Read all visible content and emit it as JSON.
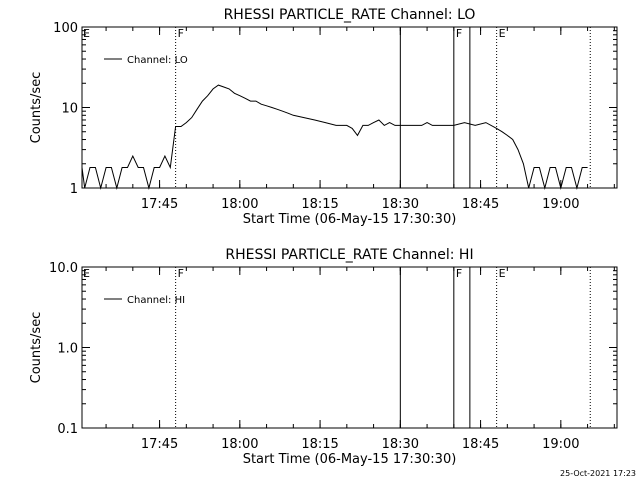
{
  "footer": {
    "timestamp": "25-Oct-2021 17:23"
  },
  "chart_data": [
    {
      "type": "line",
      "title": "RHESSI PARTICLE_RATE Channel: LO",
      "xlabel": "Start Time (06-May-15 17:30:30)",
      "ylabel": "Counts/sec",
      "yscale": "log",
      "ylim": [
        1,
        100
      ],
      "yticks": [
        1,
        10,
        100
      ],
      "ytick_labels": [
        "1",
        "10",
        "100"
      ],
      "xlim": [
        "17:30:30",
        "19:10:30"
      ],
      "xticks": [
        "17:45",
        "18:00",
        "18:15",
        "18:30",
        "18:45",
        "19:00"
      ],
      "legend": {
        "label": "Channel: LO",
        "placement": "top-left"
      },
      "grid": false,
      "markers": [
        {
          "time": "17:48:00",
          "label": "F",
          "style": "dotted"
        },
        {
          "time": "18:30:00",
          "label": "",
          "style": "solid"
        },
        {
          "time": "18:40:00",
          "label": "F",
          "style": "solid"
        },
        {
          "time": "18:43:00",
          "label": "",
          "style": "solid"
        },
        {
          "time": "18:48:00",
          "label": "E",
          "style": "dotted"
        },
        {
          "time": "19:05:30",
          "label": "",
          "style": "dotted"
        }
      ],
      "corner_label": "E",
      "series": [
        {
          "name": "Channel: LO",
          "x": [
            "17:30:30",
            "17:31:00",
            "17:32:00",
            "17:33:00",
            "17:34:00",
            "17:35:00",
            "17:36:00",
            "17:37:00",
            "17:38:00",
            "17:39:00",
            "17:40:00",
            "17:41:00",
            "17:42:00",
            "17:43:00",
            "17:44:00",
            "17:45:00",
            "17:46:00",
            "17:47:00",
            "17:48:00",
            "17:49:00",
            "17:50:00",
            "17:51:00",
            "17:52:00",
            "17:53:00",
            "17:54:00",
            "17:55:00",
            "17:56:00",
            "17:57:00",
            "17:58:00",
            "17:59:00",
            "18:00:00",
            "18:01:00",
            "18:02:00",
            "18:03:00",
            "18:04:00",
            "18:05:00",
            "18:06:00",
            "18:07:00",
            "18:08:00",
            "18:09:00",
            "18:10:00",
            "18:12:00",
            "18:14:00",
            "18:16:00",
            "18:18:00",
            "18:20:00",
            "18:21:00",
            "18:22:00",
            "18:23:00",
            "18:24:00",
            "18:25:00",
            "18:26:00",
            "18:27:00",
            "18:28:00",
            "18:29:00",
            "18:30:00",
            "18:32:00",
            "18:34:00",
            "18:35:00",
            "18:36:00",
            "18:38:00",
            "18:40:00",
            "18:42:00",
            "18:44:00",
            "18:46:00",
            "18:48:00",
            "18:49:00",
            "18:50:00",
            "18:51:00",
            "18:52:00",
            "18:53:00",
            "18:54:00",
            "18:55:00",
            "18:56:00",
            "18:57:00",
            "18:58:00",
            "18:59:00",
            "19:00:00",
            "19:01:00",
            "19:02:00",
            "19:03:00",
            "19:04:00",
            "19:05:00"
          ],
          "y": [
            1.8,
            1.0,
            1.8,
            1.8,
            1.0,
            1.8,
            1.8,
            1.0,
            1.8,
            1.8,
            2.5,
            1.8,
            1.8,
            1.0,
            1.8,
            1.8,
            2.5,
            1.8,
            5.8,
            5.8,
            6.5,
            7.5,
            9.5,
            12,
            14,
            17,
            19,
            18,
            17,
            15,
            14,
            13,
            12,
            12,
            11,
            10.5,
            10,
            9.5,
            9,
            8.5,
            8,
            7.5,
            7,
            6.5,
            6,
            6,
            5.5,
            4.5,
            6,
            6,
            6.5,
            7,
            6,
            6.5,
            6,
            6,
            6,
            6,
            6.5,
            6,
            6,
            6,
            6.5,
            6,
            6.5,
            5.5,
            5,
            4.5,
            4,
            3,
            2,
            1.0,
            1.8,
            1.8,
            1.0,
            1.8,
            1.8,
            1.0,
            1.8,
            1.8,
            1.0,
            1.8,
            1.8
          ]
        }
      ]
    },
    {
      "type": "line",
      "title": "RHESSI PARTICLE_RATE Channel: HI",
      "xlabel": "Start Time (06-May-15 17:30:30)",
      "ylabel": "Counts/sec",
      "yscale": "log",
      "ylim": [
        0.1,
        10
      ],
      "yticks": [
        0.1,
        1,
        10
      ],
      "ytick_labels": [
        "0.1",
        "1.0",
        "10.0"
      ],
      "xlim": [
        "17:30:30",
        "19:10:30"
      ],
      "xticks": [
        "17:45",
        "18:00",
        "18:15",
        "18:30",
        "18:45",
        "19:00"
      ],
      "legend": {
        "label": "Channel: HI",
        "placement": "top-left"
      },
      "grid": false,
      "markers": [
        {
          "time": "17:48:00",
          "label": "F",
          "style": "dotted"
        },
        {
          "time": "18:30:00",
          "label": "",
          "style": "solid"
        },
        {
          "time": "18:40:00",
          "label": "F",
          "style": "solid"
        },
        {
          "time": "18:43:00",
          "label": "",
          "style": "solid"
        },
        {
          "time": "18:48:00",
          "label": "E",
          "style": "dotted"
        },
        {
          "time": "19:05:30",
          "label": "",
          "style": "dotted"
        }
      ],
      "corner_label": "E",
      "series": [
        {
          "name": "Channel: HI",
          "x": [],
          "y": []
        }
      ]
    }
  ]
}
